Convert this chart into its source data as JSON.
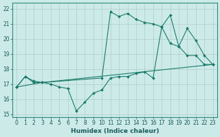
{
  "xlabel": "Humidex (Indice chaleur)",
  "background_color": "#cceae8",
  "grid_color": "#b0cccc",
  "line_color": "#1a7a6a",
  "xlim": [
    -0.5,
    23.5
  ],
  "ylim": [
    14.8,
    22.4
  ],
  "xticks": [
    0,
    1,
    2,
    3,
    4,
    5,
    6,
    7,
    8,
    9,
    10,
    11,
    12,
    13,
    14,
    15,
    16,
    17,
    18,
    19,
    20,
    21,
    22,
    23
  ],
  "yticks": [
    15,
    16,
    17,
    18,
    19,
    20,
    21,
    22
  ],
  "series1_x": [
    0,
    1,
    2,
    3,
    4,
    5,
    6,
    7,
    8,
    9,
    10,
    11,
    12,
    13,
    14,
    15,
    16,
    17,
    18,
    19,
    20,
    21,
    22,
    23
  ],
  "series1_y": [
    16.8,
    17.5,
    17.2,
    17.1,
    17.0,
    16.8,
    16.7,
    15.2,
    15.8,
    16.4,
    16.6,
    17.4,
    17.5,
    17.5,
    17.7,
    17.8,
    17.4,
    20.8,
    19.7,
    19.5,
    18.9,
    18.9,
    18.3,
    18.3
  ],
  "series2_x": [
    0,
    1,
    2,
    3,
    10,
    11,
    12,
    13,
    14,
    15,
    16,
    17,
    18,
    19,
    20,
    21,
    22,
    23
  ],
  "series2_y": [
    16.8,
    17.5,
    17.1,
    17.1,
    17.4,
    21.8,
    21.5,
    21.7,
    21.3,
    21.1,
    21.0,
    20.8,
    21.6,
    19.5,
    20.7,
    19.9,
    18.9,
    18.3
  ],
  "series3_x": [
    0,
    3,
    23
  ],
  "series3_y": [
    16.8,
    17.1,
    18.3
  ]
}
